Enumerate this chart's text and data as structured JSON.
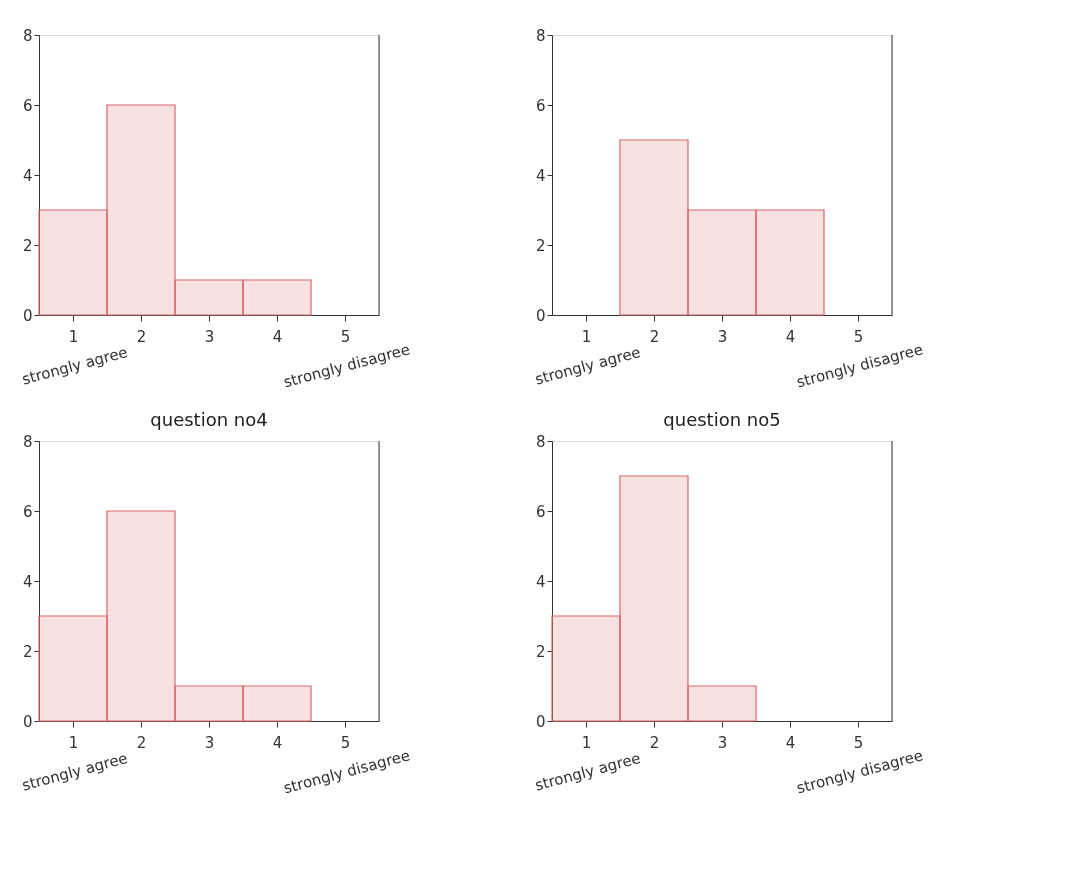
{
  "chart_data": [
    {
      "type": "histogram",
      "bins": [
        0.5,
        1.5,
        2.5,
        3.5,
        4.5,
        5.5
      ],
      "values": [
        3,
        6,
        1,
        1,
        0
      ],
      "color": "#d9676a",
      "xlim": [
        0.5,
        5.5
      ],
      "xticks": [
        1,
        2,
        3,
        4,
        5
      ],
      "ylim": [
        0,
        8
      ],
      "yticks": [
        0,
        2,
        4,
        6,
        8
      ],
      "grid": false,
      "annotations": [
        "strongly agree",
        "strongly disagree"
      ]
    },
    {
      "type": "histogram",
      "bins": [
        0.5,
        1.5,
        2.5,
        3.5,
        4.5,
        5.5
      ],
      "values": [
        0,
        5,
        3,
        3,
        0
      ],
      "color": "#d9676a",
      "xlim": [
        0.5,
        5.5
      ],
      "xticks": [
        1,
        2,
        3,
        4,
        5
      ],
      "ylim": [
        0,
        8
      ],
      "yticks": [
        0,
        2,
        4,
        6,
        8
      ],
      "grid": false,
      "annotations": [
        "strongly agree",
        "strongly disagree"
      ]
    },
    {
      "type": "histogram",
      "title": "question no4",
      "bins": [
        0.5,
        1.5,
        2.5,
        3.5,
        4.5,
        5.5
      ],
      "values": [
        3,
        6,
        1,
        1,
        0
      ],
      "color": "#d9676a",
      "xlim": [
        0.5,
        5.5
      ],
      "xticks": [
        1,
        2,
        3,
        4,
        5
      ],
      "ylim": [
        0,
        8
      ],
      "yticks": [
        0,
        2,
        4,
        6,
        8
      ],
      "grid": false,
      "annotations": [
        "strongly agree",
        "strongly disagree"
      ]
    },
    {
      "type": "histogram",
      "title": "question no5",
      "bins": [
        0.5,
        1.5,
        2.5,
        3.5,
        4.5,
        5.5
      ],
      "values": [
        3,
        7,
        1,
        0,
        0
      ],
      "color": "#d9676a",
      "xlim": [
        0.5,
        5.5
      ],
      "xticks": [
        1,
        2,
        3,
        4,
        5
      ],
      "ylim": [
        0,
        8
      ],
      "yticks": [
        0,
        2,
        4,
        6,
        8
      ],
      "grid": false,
      "annotations": [
        "strongly agree",
        "strongly disagree"
      ]
    }
  ]
}
